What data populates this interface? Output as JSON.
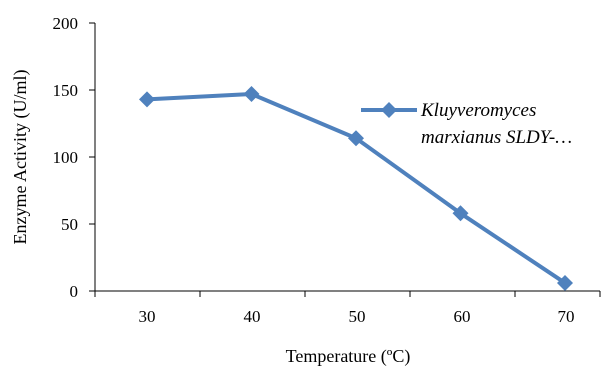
{
  "chart_data": {
    "type": "line",
    "title": "",
    "xlabel": "Temperature (ºC)",
    "ylabel": "Enzyme Activity (U/ml)",
    "x": [
      30,
      40,
      50,
      60,
      70
    ],
    "xticks": [
      "30",
      "40",
      "50",
      "60",
      "70"
    ],
    "yticks": [
      "0",
      "50",
      "100",
      "150",
      "200"
    ],
    "ylim": [
      0,
      200
    ],
    "grid": false,
    "legend_position": "right",
    "series": [
      {
        "name_lines": [
          "Kluyveromyces",
          "marxianus SLDY-…"
        ],
        "values": [
          143,
          147,
          114,
          58,
          6
        ],
        "color": "#4f81bd",
        "marker": "diamond"
      }
    ]
  }
}
